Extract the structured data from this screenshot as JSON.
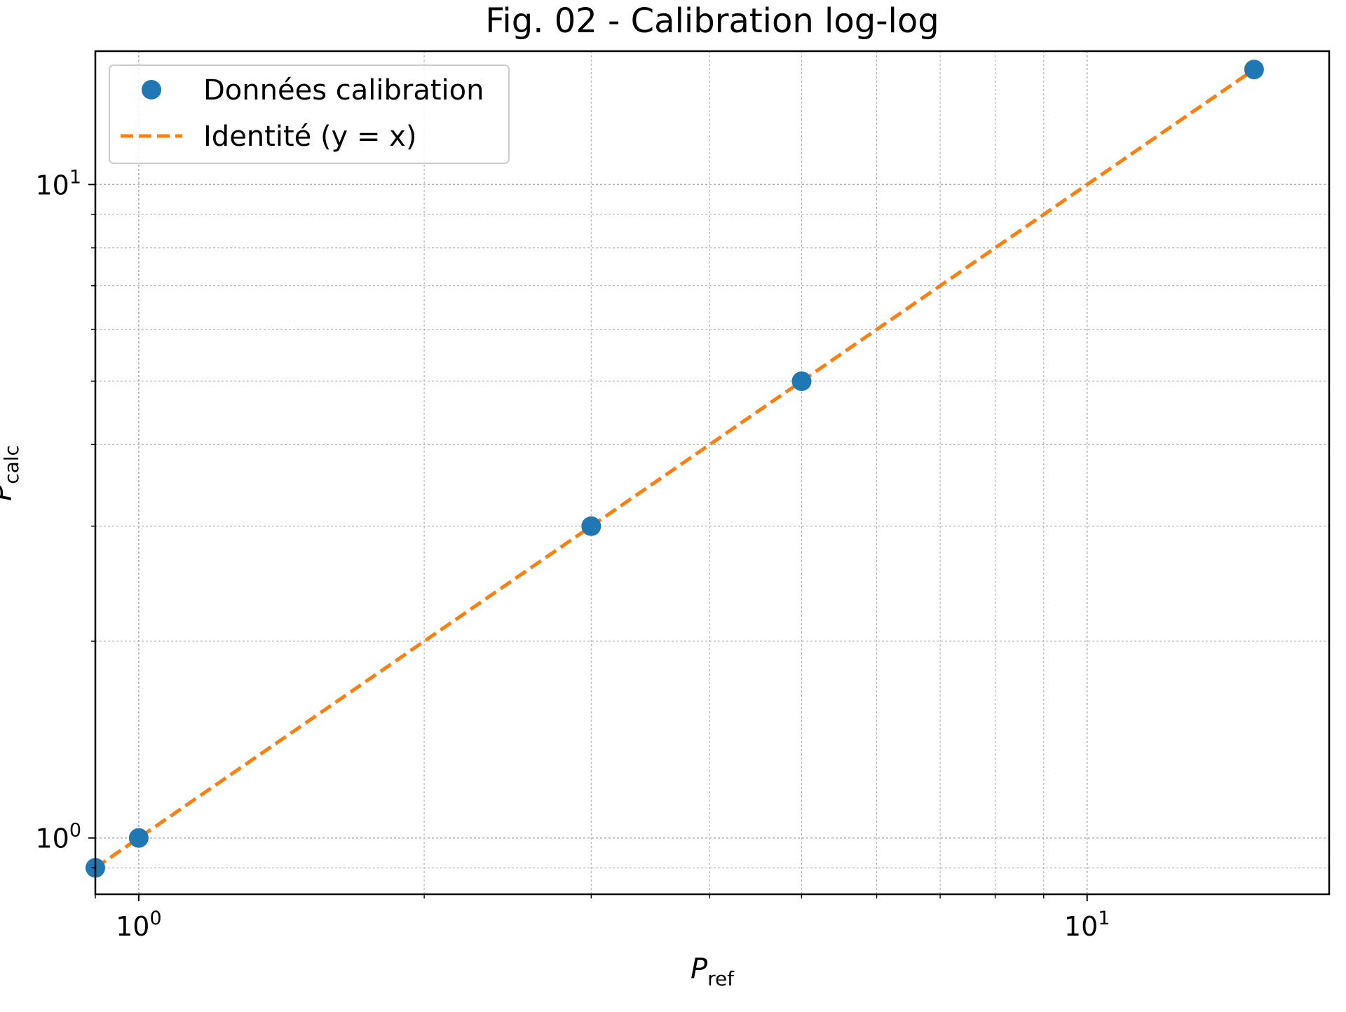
{
  "chart_data": {
    "type": "scatter",
    "title": "Fig. 02 - Calibration log-log",
    "xlabel": {
      "symbol": "P",
      "subscript": "ref"
    },
    "ylabel": {
      "symbol": "P",
      "subscript": "calc"
    },
    "xscale": "log",
    "yscale": "log",
    "xlim": [
      0.9,
      18
    ],
    "ylim": [
      0.82,
      16
    ],
    "grid": {
      "major": true,
      "minor": true,
      "style": "dotted"
    },
    "legend": {
      "placement": "upper-left"
    },
    "x_ticks": [
      {
        "base": "10",
        "exp": "0",
        "value": 1
      },
      {
        "base": "10",
        "exp": "1",
        "value": 10
      }
    ],
    "y_ticks": [
      {
        "base": "10",
        "exp": "0",
        "value": 1
      },
      {
        "base": "10",
        "exp": "1",
        "value": 10
      }
    ],
    "series": [
      {
        "name": "Données calibration",
        "kind": "scatter",
        "color": "#1f77b4",
        "x": [
          0.9,
          1.0,
          3.0,
          5.0,
          15.0
        ],
        "y": [
          0.9,
          1.0,
          3.0,
          5.0,
          15.0
        ]
      },
      {
        "name": "Identité (y = x)",
        "kind": "line",
        "style": "dashed",
        "color": "#ff7f0e",
        "x": [
          0.9,
          15.0
        ],
        "y": [
          0.9,
          15.0
        ]
      }
    ]
  }
}
